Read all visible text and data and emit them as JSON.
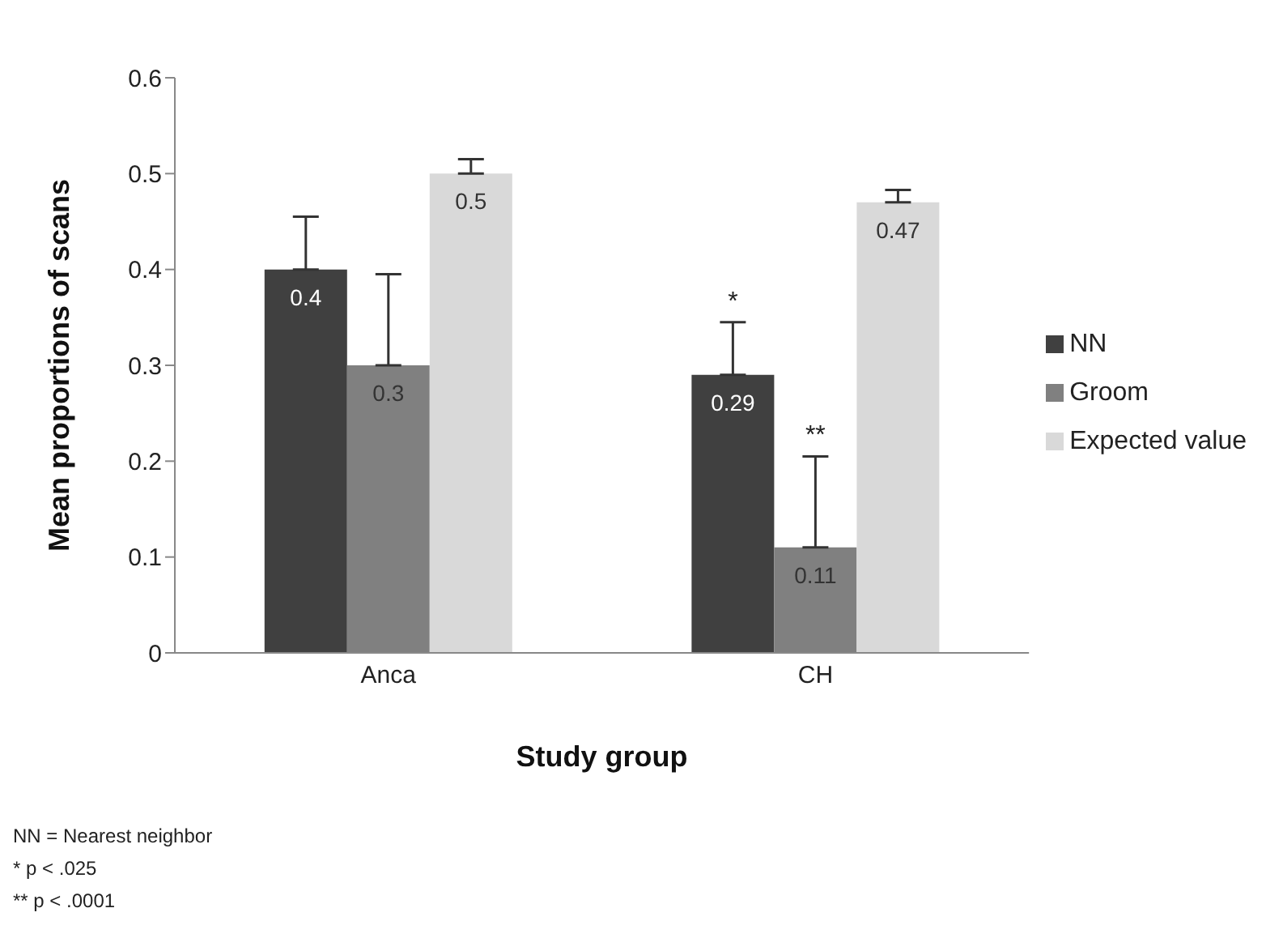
{
  "chart_data": {
    "type": "bar",
    "xlabel": "Study group",
    "ylabel": "Mean  proportions of scans",
    "categories": [
      "Anca",
      "CH"
    ],
    "series": [
      {
        "name": "NN",
        "color": "#404040",
        "values": [
          0.4,
          0.29
        ],
        "errors": [
          [
            0.4,
            0.455
          ],
          [
            0.29,
            0.345
          ]
        ]
      },
      {
        "name": "Groom",
        "color": "#808080",
        "values": [
          0.3,
          0.11
        ],
        "errors": [
          [
            0.3,
            0.395
          ],
          [
            0.11,
            0.205
          ]
        ]
      },
      {
        "name": "Expected value",
        "color": "#d9d9d9",
        "values": [
          0.5,
          0.47
        ],
        "errors": [
          [
            0.5,
            0.515
          ],
          [
            0.47,
            0.483
          ]
        ]
      }
    ],
    "ylim": [
      0,
      0.6
    ],
    "yticks": [
      0,
      0.1,
      0.2,
      0.3,
      0.4,
      0.5,
      0.6
    ],
    "grid": false,
    "legend": "right",
    "data_labels": true,
    "annotations": [
      "*",
      "**",
      "NN = Nearest neighbor",
      "* p < .025",
      "** p < .0001"
    ]
  }
}
